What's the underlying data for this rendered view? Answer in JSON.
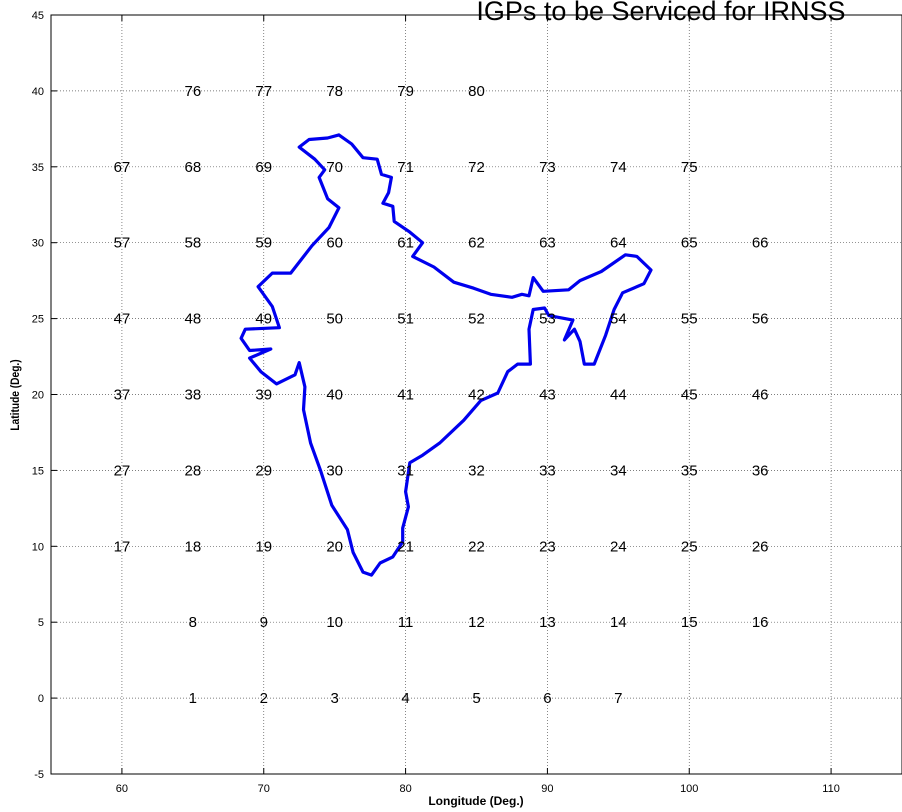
{
  "chart_data": {
    "type": "scatter",
    "title": "IGPs to be Serviced for IRNSS",
    "xlabel": "Longitude (Deg.)",
    "ylabel": "Latitude (Deg.)",
    "xlim": [
      55,
      115
    ],
    "ylim": [
      -5,
      45
    ],
    "xticks": [
      60,
      70,
      80,
      90,
      100,
      110
    ],
    "yticks": [
      -5,
      0,
      5,
      10,
      15,
      20,
      25,
      30,
      35,
      40,
      45
    ],
    "grid": true,
    "boundary_color": "#0000ee",
    "igps": [
      {
        "id": "1",
        "lon": 65,
        "lat": 0
      },
      {
        "id": "2",
        "lon": 70,
        "lat": 0
      },
      {
        "id": "3",
        "lon": 75,
        "lat": 0
      },
      {
        "id": "4",
        "lon": 80,
        "lat": 0
      },
      {
        "id": "5",
        "lon": 85,
        "lat": 0
      },
      {
        "id": "6",
        "lon": 90,
        "lat": 0
      },
      {
        "id": "7",
        "lon": 95,
        "lat": 0
      },
      {
        "id": "8",
        "lon": 65,
        "lat": 5
      },
      {
        "id": "9",
        "lon": 70,
        "lat": 5
      },
      {
        "id": "10",
        "lon": 75,
        "lat": 5
      },
      {
        "id": "11",
        "lon": 80,
        "lat": 5
      },
      {
        "id": "12",
        "lon": 85,
        "lat": 5
      },
      {
        "id": "13",
        "lon": 90,
        "lat": 5
      },
      {
        "id": "14",
        "lon": 95,
        "lat": 5
      },
      {
        "id": "15",
        "lon": 100,
        "lat": 5
      },
      {
        "id": "16",
        "lon": 105,
        "lat": 5
      },
      {
        "id": "17",
        "lon": 60,
        "lat": 10
      },
      {
        "id": "18",
        "lon": 65,
        "lat": 10
      },
      {
        "id": "19",
        "lon": 70,
        "lat": 10
      },
      {
        "id": "20",
        "lon": 75,
        "lat": 10
      },
      {
        "id": "21",
        "lon": 80,
        "lat": 10
      },
      {
        "id": "22",
        "lon": 85,
        "lat": 10
      },
      {
        "id": "23",
        "lon": 90,
        "lat": 10
      },
      {
        "id": "24",
        "lon": 95,
        "lat": 10
      },
      {
        "id": "25",
        "lon": 100,
        "lat": 10
      },
      {
        "id": "26",
        "lon": 105,
        "lat": 10
      },
      {
        "id": "27",
        "lon": 60,
        "lat": 15
      },
      {
        "id": "28",
        "lon": 65,
        "lat": 15
      },
      {
        "id": "29",
        "lon": 70,
        "lat": 15
      },
      {
        "id": "30",
        "lon": 75,
        "lat": 15
      },
      {
        "id": "31",
        "lon": 80,
        "lat": 15
      },
      {
        "id": "32",
        "lon": 85,
        "lat": 15
      },
      {
        "id": "33",
        "lon": 90,
        "lat": 15
      },
      {
        "id": "34",
        "lon": 95,
        "lat": 15
      },
      {
        "id": "35",
        "lon": 100,
        "lat": 15
      },
      {
        "id": "36",
        "lon": 105,
        "lat": 15
      },
      {
        "id": "37",
        "lon": 60,
        "lat": 20
      },
      {
        "id": "38",
        "lon": 65,
        "lat": 20
      },
      {
        "id": "39",
        "lon": 70,
        "lat": 20
      },
      {
        "id": "40",
        "lon": 75,
        "lat": 20
      },
      {
        "id": "41",
        "lon": 80,
        "lat": 20
      },
      {
        "id": "42",
        "lon": 85,
        "lat": 20
      },
      {
        "id": "43",
        "lon": 90,
        "lat": 20
      },
      {
        "id": "44",
        "lon": 95,
        "lat": 20
      },
      {
        "id": "45",
        "lon": 100,
        "lat": 20
      },
      {
        "id": "46",
        "lon": 105,
        "lat": 20
      },
      {
        "id": "47",
        "lon": 60,
        "lat": 25
      },
      {
        "id": "48",
        "lon": 65,
        "lat": 25
      },
      {
        "id": "49",
        "lon": 70,
        "lat": 25
      },
      {
        "id": "50",
        "lon": 75,
        "lat": 25
      },
      {
        "id": "51",
        "lon": 80,
        "lat": 25
      },
      {
        "id": "52",
        "lon": 85,
        "lat": 25
      },
      {
        "id": "53",
        "lon": 90,
        "lat": 25
      },
      {
        "id": "54",
        "lon": 95,
        "lat": 25
      },
      {
        "id": "55",
        "lon": 100,
        "lat": 25
      },
      {
        "id": "56",
        "lon": 105,
        "lat": 25
      },
      {
        "id": "57",
        "lon": 60,
        "lat": 30
      },
      {
        "id": "58",
        "lon": 65,
        "lat": 30
      },
      {
        "id": "59",
        "lon": 70,
        "lat": 30
      },
      {
        "id": "60",
        "lon": 75,
        "lat": 30
      },
      {
        "id": "61",
        "lon": 80,
        "lat": 30
      },
      {
        "id": "62",
        "lon": 85,
        "lat": 30
      },
      {
        "id": "63",
        "lon": 90,
        "lat": 30
      },
      {
        "id": "64",
        "lon": 95,
        "lat": 30
      },
      {
        "id": "65",
        "lon": 100,
        "lat": 30
      },
      {
        "id": "66",
        "lon": 105,
        "lat": 30
      },
      {
        "id": "67",
        "lon": 60,
        "lat": 35
      },
      {
        "id": "68",
        "lon": 65,
        "lat": 35
      },
      {
        "id": "69",
        "lon": 70,
        "lat": 35
      },
      {
        "id": "70",
        "lon": 75,
        "lat": 35
      },
      {
        "id": "71",
        "lon": 80,
        "lat": 35
      },
      {
        "id": "72",
        "lon": 85,
        "lat": 35
      },
      {
        "id": "73",
        "lon": 90,
        "lat": 35
      },
      {
        "id": "74",
        "lon": 95,
        "lat": 35
      },
      {
        "id": "75",
        "lon": 100,
        "lat": 35
      },
      {
        "id": "76",
        "lon": 65,
        "lat": 40
      },
      {
        "id": "77",
        "lon": 70,
        "lat": 40
      },
      {
        "id": "78",
        "lon": 75,
        "lat": 40
      },
      {
        "id": "79",
        "lon": 80,
        "lat": 40
      },
      {
        "id": "80",
        "lon": 85,
        "lat": 40
      }
    ],
    "boundary": [
      [
        74.5,
        36.9
      ],
      [
        75.3,
        37.1
      ],
      [
        76.2,
        36.5
      ],
      [
        77.0,
        35.6
      ],
      [
        78.0,
        35.5
      ],
      [
        78.3,
        34.5
      ],
      [
        79.0,
        34.3
      ],
      [
        78.8,
        33.3
      ],
      [
        78.4,
        32.6
      ],
      [
        79.1,
        32.4
      ],
      [
        79.2,
        31.4
      ],
      [
        80.3,
        30.7
      ],
      [
        81.2,
        30.0
      ],
      [
        80.5,
        29.1
      ],
      [
        82.0,
        28.4
      ],
      [
        83.4,
        27.4
      ],
      [
        84.8,
        27.0
      ],
      [
        86.0,
        26.6
      ],
      [
        87.5,
        26.4
      ],
      [
        88.2,
        26.6
      ],
      [
        88.7,
        26.5
      ],
      [
        89.0,
        27.7
      ],
      [
        89.7,
        26.8
      ],
      [
        91.5,
        26.9
      ],
      [
        92.3,
        27.5
      ],
      [
        93.8,
        28.1
      ],
      [
        95.5,
        29.2
      ],
      [
        96.3,
        29.1
      ],
      [
        97.3,
        28.2
      ],
      [
        96.8,
        27.3
      ],
      [
        95.3,
        26.7
      ],
      [
        94.7,
        25.6
      ],
      [
        94.1,
        23.9
      ],
      [
        93.3,
        22.0
      ],
      [
        92.6,
        22.0
      ],
      [
        92.3,
        23.5
      ],
      [
        91.9,
        24.3
      ],
      [
        91.2,
        23.6
      ],
      [
        91.8,
        24.9
      ],
      [
        90.1,
        25.2
      ],
      [
        89.8,
        25.7
      ],
      [
        89.0,
        25.6
      ],
      [
        88.7,
        24.3
      ],
      [
        88.8,
        22.0
      ],
      [
        87.9,
        22.0
      ],
      [
        87.2,
        21.5
      ],
      [
        86.5,
        20.1
      ],
      [
        85.3,
        19.6
      ],
      [
        84.1,
        18.3
      ],
      [
        82.4,
        16.8
      ],
      [
        81.2,
        16.0
      ],
      [
        80.3,
        15.5
      ],
      [
        80.0,
        13.6
      ],
      [
        80.2,
        12.6
      ],
      [
        79.8,
        11.2
      ],
      [
        79.8,
        10.3
      ],
      [
        79.1,
        9.3
      ],
      [
        78.2,
        8.9
      ],
      [
        77.6,
        8.1
      ],
      [
        77.0,
        8.3
      ],
      [
        76.3,
        9.6
      ],
      [
        75.9,
        11.1
      ],
      [
        74.8,
        12.7
      ],
      [
        74.0,
        15.0
      ],
      [
        73.3,
        16.8
      ],
      [
        72.8,
        19.0
      ],
      [
        72.9,
        20.5
      ],
      [
        72.5,
        22.1
      ],
      [
        72.2,
        21.3
      ],
      [
        70.9,
        20.7
      ],
      [
        69.8,
        21.5
      ],
      [
        69.0,
        22.4
      ],
      [
        70.5,
        23.0
      ],
      [
        69.0,
        22.9
      ],
      [
        68.4,
        23.7
      ],
      [
        68.7,
        24.3
      ],
      [
        71.1,
        24.4
      ],
      [
        70.6,
        25.8
      ],
      [
        69.6,
        27.1
      ],
      [
        70.6,
        28.0
      ],
      [
        71.9,
        28.0
      ],
      [
        73.4,
        29.8
      ],
      [
        74.6,
        31.0
      ],
      [
        75.3,
        32.3
      ],
      [
        74.5,
        32.9
      ],
      [
        73.9,
        34.3
      ],
      [
        74.3,
        34.8
      ],
      [
        73.6,
        35.5
      ],
      [
        72.5,
        36.3
      ],
      [
        73.2,
        36.8
      ]
    ]
  }
}
